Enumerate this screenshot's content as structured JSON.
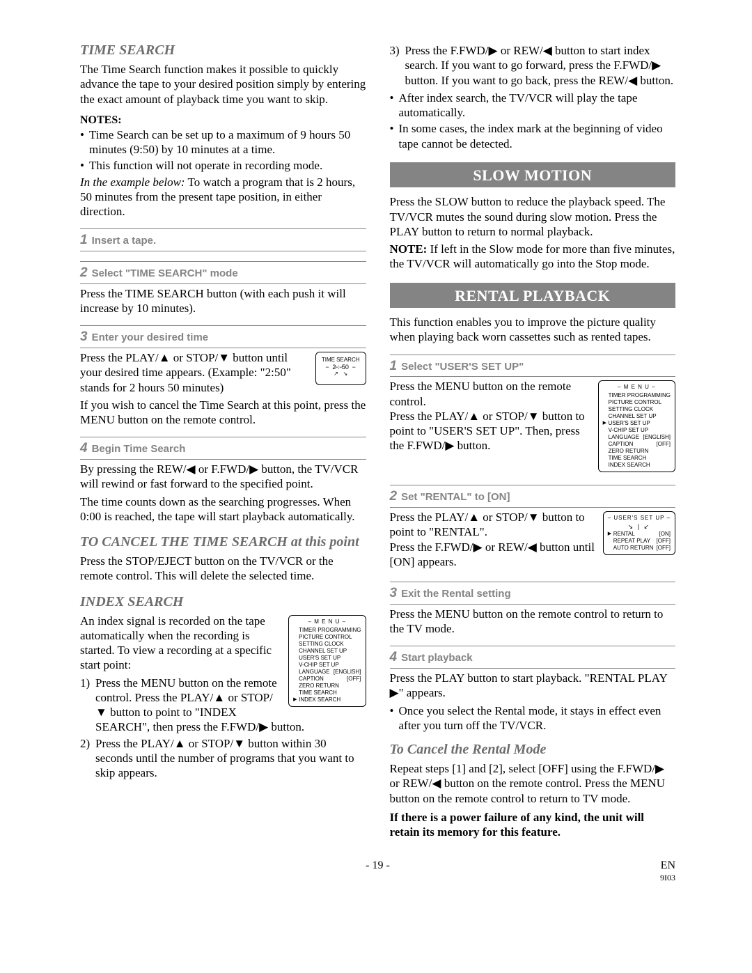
{
  "colors": {
    "banner_bg": "#848484",
    "banner_text": "#ffffff",
    "step_gray": "#848484",
    "subtitle_gray": "#6d6d6d",
    "text": "#000000"
  },
  "sections": {
    "time_search": {
      "title": "TIME SEARCH",
      "intro": "The Time Search function makes it possible to quickly advance the tape to your desired position simply by entering the exact amount of playback time you want to skip.",
      "notes_label": "NOTES:",
      "notes": [
        "Time Search can be set up to a maximum of 9 hours 50 minutes (9:50) by 10 minutes at a time.",
        "This function will not operate in recording mode."
      ],
      "example_lead": "In the example below:",
      "example_rest": " To watch a program that is 2 hours, 50 minutes from the present tape position, in either direction.",
      "steps": [
        {
          "num": "1",
          "title": "Insert a tape.",
          "body": ""
        },
        {
          "num": "2",
          "title": "Select \"TIME SEARCH\" mode",
          "body": "Press the TIME SEARCH button (with each push it will increase by 10 minutes)."
        },
        {
          "num": "3",
          "title": "Enter your desired time",
          "body_a": "Press the PLAY/▲ or STOP/▼ button until your desired time appears. (Example: \"2:50\" stands for 2 hours 50 minutes)",
          "body_b": "If you wish to cancel the Time Search at this point, press the MENU button on the remote control.",
          "ts_box": {
            "label": "TIME SEARCH",
            "hours": "2",
            "mins": "50"
          }
        },
        {
          "num": "4",
          "title": "Begin Time Search",
          "body_a": "By pressing the REW/◀ or F.FWD/▶ button, the TV/VCR will rewind or fast forward to the specified point.",
          "body_b": "The time counts down as the searching progresses. When 0:00 is reached, the tape will start playback automatically."
        }
      ],
      "cancel_title": "TO CANCEL THE TIME SEARCH at this point",
      "cancel_body": "Press the STOP/EJECT button on the TV/VCR or the remote control. This will delete the selected time."
    },
    "index_search": {
      "title": "INDEX SEARCH",
      "intro": "An index signal is recorded on the tape automatically when the recording is started. To view a recording at a specific start point:",
      "menu": {
        "title": "– M E N U –",
        "items": [
          {
            "label": "TIMER PROGRAMMING"
          },
          {
            "label": "PICTURE CONTROL"
          },
          {
            "label": "SETTING CLOCK"
          },
          {
            "label": "CHANNEL SET UP"
          },
          {
            "label": "USER'S SET UP"
          },
          {
            "label": "V-CHIP SET UP"
          },
          {
            "label": "LANGUAGE",
            "val": "[ENGLISH]"
          },
          {
            "label": "CAPTION",
            "val": "[OFF]"
          },
          {
            "label": "ZERO RETURN"
          },
          {
            "label": "TIME SEARCH"
          },
          {
            "label": "INDEX SEARCH",
            "sel": true
          }
        ]
      },
      "list": [
        "Press the MENU button on the remote control. Press the PLAY/▲ or STOP/▼ button to point to \"INDEX SEARCH\", then press the F.FWD/▶ button.",
        "Press the PLAY/▲ or STOP/▼ button within 30 seconds until the number of programs that you want to skip appears.",
        "Press the F.FWD/▶ or REW/◀ button to start index search. If you want to go forward, press the F.FWD/▶ button. If you want to go back, press the REW/◀ button."
      ],
      "post_bullets": [
        "After index search, the TV/VCR will play the tape automatically.",
        "In some cases, the index mark at the beginning of video tape cannot be detected."
      ]
    },
    "slow_motion": {
      "banner": "SLOW MOTION",
      "body": "Press the SLOW button to reduce the playback speed. The TV/VCR mutes the sound during slow motion. Press the PLAY button to return to normal playback.",
      "note_label": "NOTE:",
      "note_rest": " If left in the Slow mode for more than five minutes, the TV/VCR will automatically go into the Stop mode."
    },
    "rental": {
      "banner": "RENTAL PLAYBACK",
      "intro": "This function enables you to improve the picture quality when playing back worn cassettes such as rented tapes.",
      "steps": [
        {
          "num": "1",
          "title": "Select \"USER'S SET UP\"",
          "body": "Press the MENU button on the remote control.\nPress the PLAY/▲ or STOP/▼ button to point to \"USER'S SET UP\". Then, press the F.FWD/▶ button.",
          "menu": {
            "title": "– M E N U –",
            "items": [
              {
                "label": "TIMER PROGRAMMING"
              },
              {
                "label": "PICTURE CONTROL"
              },
              {
                "label": "SETTING CLOCK"
              },
              {
                "label": "CHANNEL SET UP"
              },
              {
                "label": "USER'S SET UP",
                "sel": true
              },
              {
                "label": "V-CHIP SET UP"
              },
              {
                "label": "LANGUAGE",
                "val": "[ENGLISH]"
              },
              {
                "label": "CAPTION",
                "val": "[OFF]"
              },
              {
                "label": "ZERO RETURN"
              },
              {
                "label": "TIME SEARCH"
              },
              {
                "label": "INDEX SEARCH"
              }
            ]
          }
        },
        {
          "num": "2",
          "title": "Set \"RENTAL\" to [ON]",
          "body": "Press the PLAY/▲ or STOP/▼ button to point to \"RENTAL\".\nPress the F.FWD/▶ or REW/◀ button until [ON] appears.",
          "usersetup": {
            "title": "– USER'S SET UP –",
            "items": [
              {
                "label": "RENTAL",
                "val": "[ON]",
                "sel": true
              },
              {
                "label": "REPEAT PLAY",
                "val": "[OFF]"
              },
              {
                "label": "AUTO RETURN",
                "val": "[OFF]"
              }
            ]
          }
        },
        {
          "num": "3",
          "title": "Exit the Rental setting",
          "body": "Press the MENU button on the remote control to return to the TV mode."
        },
        {
          "num": "4",
          "title": "Start playback",
          "body": "Press the PLAY button to start playback. \"RENTAL PLAY ▶\" appears.",
          "post_bullet": "Once you select the Rental mode, it stays in effect even after you turn off the TV/VCR."
        }
      ],
      "cancel_title": "To Cancel the Rental Mode",
      "cancel_body": "Repeat steps [1] and [2], select [OFF] using the F.FWD/▶ or REW/◀ button on the remote control. Press the MENU button on the remote control to return to TV mode.",
      "warning": "If there is a power failure of any kind, the unit will retain its memory for this feature."
    }
  },
  "footer": {
    "page": "- 19 -",
    "lang": "EN",
    "code": "9I03"
  }
}
